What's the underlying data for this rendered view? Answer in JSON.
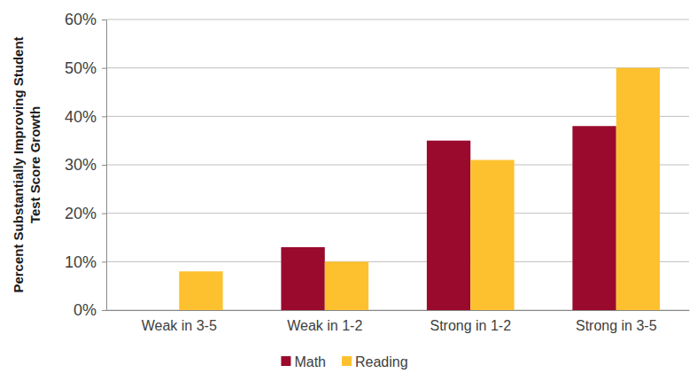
{
  "chart_data": {
    "type": "bar",
    "y_label": "Percent Substantially Improving Student Test Score Growth",
    "categories": [
      "Weak in 3-5",
      "Weak in 1-2",
      "Strong in 1-2",
      "Strong in 3-5"
    ],
    "series": [
      {
        "name": "Math",
        "color": "#990a2c",
        "values": [
          0,
          13,
          35,
          38
        ]
      },
      {
        "name": "Reading",
        "color": "#fdc12f",
        "values": [
          8,
          10,
          31,
          50
        ]
      }
    ],
    "ylim": [
      0,
      60
    ],
    "yticks": [
      {
        "value": 0,
        "label": "0%"
      },
      {
        "value": 10,
        "label": "10%"
      },
      {
        "value": 20,
        "label": "20%"
      },
      {
        "value": 30,
        "label": "30%"
      },
      {
        "value": 40,
        "label": "40%"
      },
      {
        "value": 50,
        "label": "50%"
      },
      {
        "value": 60,
        "label": "60%"
      }
    ],
    "grid": true,
    "legend": "bottom"
  }
}
